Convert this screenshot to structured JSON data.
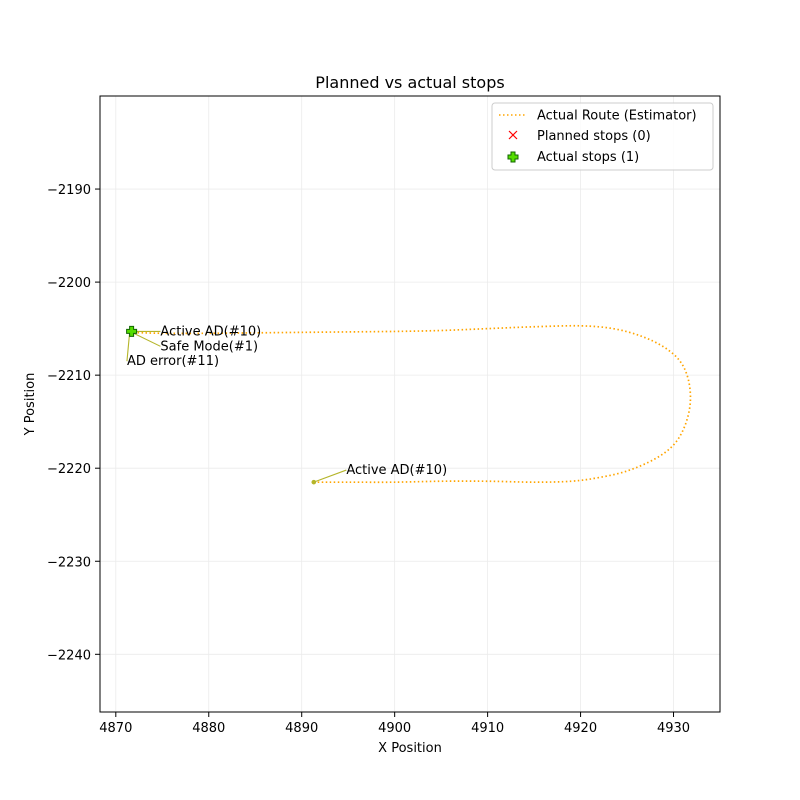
{
  "chart_data": {
    "type": "scatter",
    "title": "Planned vs actual stops",
    "xlabel": "X Position",
    "ylabel": "Y Position",
    "xlim": [
      4868.3,
      4935
    ],
    "ylim": [
      -2246.2,
      -2180
    ],
    "xticks": [
      4870,
      4880,
      4890,
      4900,
      4910,
      4920,
      4930
    ],
    "yticks": [
      -2240,
      -2230,
      -2220,
      -2210,
      -2200,
      -2190
    ],
    "grid": true,
    "legend_position": "top-right",
    "legend": [
      {
        "label": "Actual Route (Estimator)",
        "marker": "dotted-line",
        "color": "#ffa500"
      },
      {
        "label": "Planned stops (0)",
        "marker": "x",
        "color": "#ff0000"
      },
      {
        "label": "Actual stops (1)",
        "marker": "plus",
        "color": "#00aa00"
      }
    ],
    "route": [
      [
        4891.3,
        -2221.5
      ],
      [
        4895,
        -2221.5
      ],
      [
        4900,
        -2221.5
      ],
      [
        4905,
        -2221.4
      ],
      [
        4910,
        -2221.4
      ],
      [
        4915,
        -2221.5
      ],
      [
        4919,
        -2221.4
      ],
      [
        4922,
        -2221.0
      ],
      [
        4925,
        -2220.3
      ],
      [
        4928,
        -2219.0
      ],
      [
        4930,
        -2217.5
      ],
      [
        4931.2,
        -2215.5
      ],
      [
        4931.8,
        -2213.0
      ],
      [
        4931.6,
        -2210.5
      ],
      [
        4930.7,
        -2208.5
      ],
      [
        4929,
        -2207.0
      ],
      [
        4926.5,
        -2205.8
      ],
      [
        4923.5,
        -2205.0
      ],
      [
        4920,
        -2204.7
      ],
      [
        4915,
        -2204.8
      ],
      [
        4910,
        -2205.0
      ],
      [
        4905,
        -2205.2
      ],
      [
        4900,
        -2205.3
      ],
      [
        4890,
        -2205.4
      ],
      [
        4880,
        -2205.5
      ],
      [
        4875,
        -2205.5
      ],
      [
        4871.6,
        -2205.4
      ]
    ],
    "route_color": "#ffa500",
    "planned_stops": [],
    "actual_stops": [
      {
        "x": 4871.7,
        "y": -2205.3
      }
    ],
    "events": [
      {
        "x": 4891.3,
        "y": -2221.5,
        "label": "Active AD(#10)",
        "tx": 4894.8,
        "ty": -2220.2
      },
      {
        "x": 4871.5,
        "y": -2205.3,
        "label": "Active AD(#10)",
        "tx": 4874.8,
        "ty": -2205.3
      },
      {
        "x": 4871.5,
        "y": -2205.3,
        "label": "Safe Mode(#1)",
        "tx": 4874.8,
        "ty": -2206.9
      },
      {
        "x": 4871.5,
        "y": -2205.3,
        "label": "AD error(#11)",
        "tx": 4871.2,
        "ty": -2208.5
      }
    ],
    "event_color": "#b5b52a"
  }
}
